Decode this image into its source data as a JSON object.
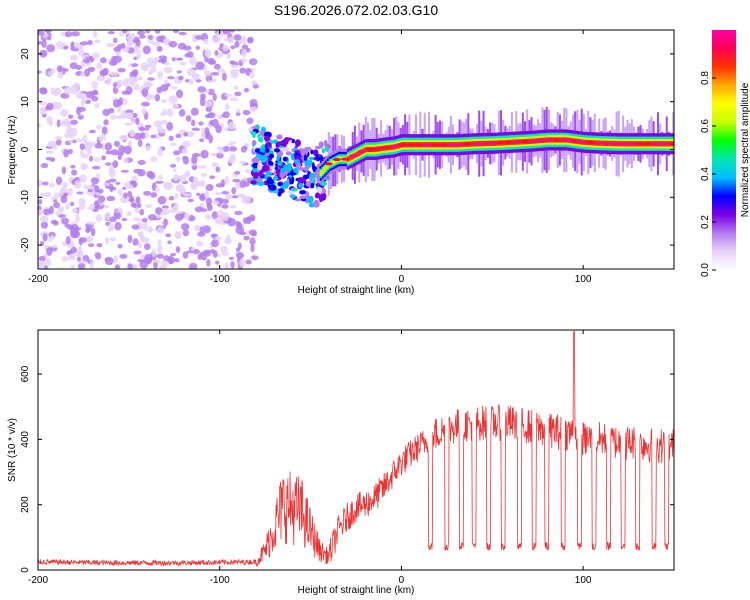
{
  "figure": {
    "title": "S196.2026.072.02.03.G10"
  },
  "chart_data": [
    {
      "type": "heatmap",
      "xlabel": "Height of straight line (km)",
      "ylabel": "Frequency (Hz)",
      "xlim": [
        -200,
        150
      ],
      "ylim": [
        -25,
        25
      ],
      "x_ticks": [
        -200,
        -100,
        0,
        100
      ],
      "y_ticks": [
        -20,
        -10,
        0,
        10,
        20
      ],
      "colorbar": {
        "label": "Normalized spectral amplitude",
        "range": [
          0,
          1
        ],
        "ticks": [
          "0.0",
          "0.2",
          "0.4",
          "0.6",
          "0.8"
        ],
        "colors": [
          "#ffffff",
          "#e6d2fa",
          "#b47cf0",
          "#7a00e6",
          "#0000ff",
          "#00bfff",
          "#00e6b4",
          "#00ff00",
          "#c8ff00",
          "#ffff00",
          "#ffaa00",
          "#ff3300",
          "#ff0055",
          "#ff00aa"
        ]
      },
      "ridge": {
        "x": [
          -80,
          -70,
          -60,
          -50,
          -45,
          -40,
          -35,
          -30,
          -25,
          -20,
          -15,
          -10,
          -5,
          0,
          10,
          20,
          30,
          40,
          50,
          60,
          70,
          80,
          90,
          100,
          110,
          120,
          130,
          140,
          150
        ],
        "y": [
          -1,
          -3,
          -4,
          -6,
          -5,
          -3,
          -2,
          -2,
          -1,
          0,
          0,
          0.3,
          0.5,
          1,
          1,
          1,
          1,
          1.2,
          1.3,
          1.5,
          1.7,
          2,
          2,
          1.5,
          1.3,
          1.2,
          1.2,
          1.2,
          1.2
        ]
      },
      "noise_region_x": [
        -200,
        -80
      ],
      "note": "Broadband low-amplitude noise for heights below about -80 km; a single coherent ridge near 0 Hz from about -80 km to 150 km with peak amplitudes approaching 1.0."
    },
    {
      "type": "line",
      "xlabel": "Height of straight line (km)",
      "ylabel": "SNR (10 * v/v)",
      "xlim": [
        -200,
        150
      ],
      "ylim": [
        0,
        735
      ],
      "x_ticks": [
        -200,
        -100,
        0,
        100
      ],
      "y_ticks": [
        0,
        200,
        400,
        600
      ],
      "series": [
        {
          "name": "SNR",
          "color": "#ee3333",
          "envelope_x": [
            -200,
            -160,
            -120,
            -80,
            -75,
            -65,
            -55,
            -50,
            -45,
            -40,
            -35,
            -30,
            -25,
            -20,
            -15,
            -10,
            -5,
            0,
            10,
            20,
            30,
            40,
            50,
            60,
            70,
            80,
            90,
            95,
            100,
            110,
            120,
            130,
            140,
            150
          ],
          "envelope_y": [
            25,
            22,
            22,
            25,
            60,
            200,
            180,
            120,
            60,
            40,
            120,
            160,
            190,
            200,
            220,
            250,
            290,
            330,
            380,
            420,
            440,
            450,
            450,
            450,
            440,
            430,
            420,
            420,
            400,
            400,
            390,
            390,
            380,
            380
          ],
          "spike": {
            "x": 95,
            "y": 730
          },
          "dropouts_x": [
            16,
            25,
            33,
            40,
            48,
            56,
            65,
            73,
            80,
            89,
            98,
            106,
            114,
            122,
            130,
            139,
            146
          ],
          "dropout_y": 60
        }
      ]
    }
  ]
}
